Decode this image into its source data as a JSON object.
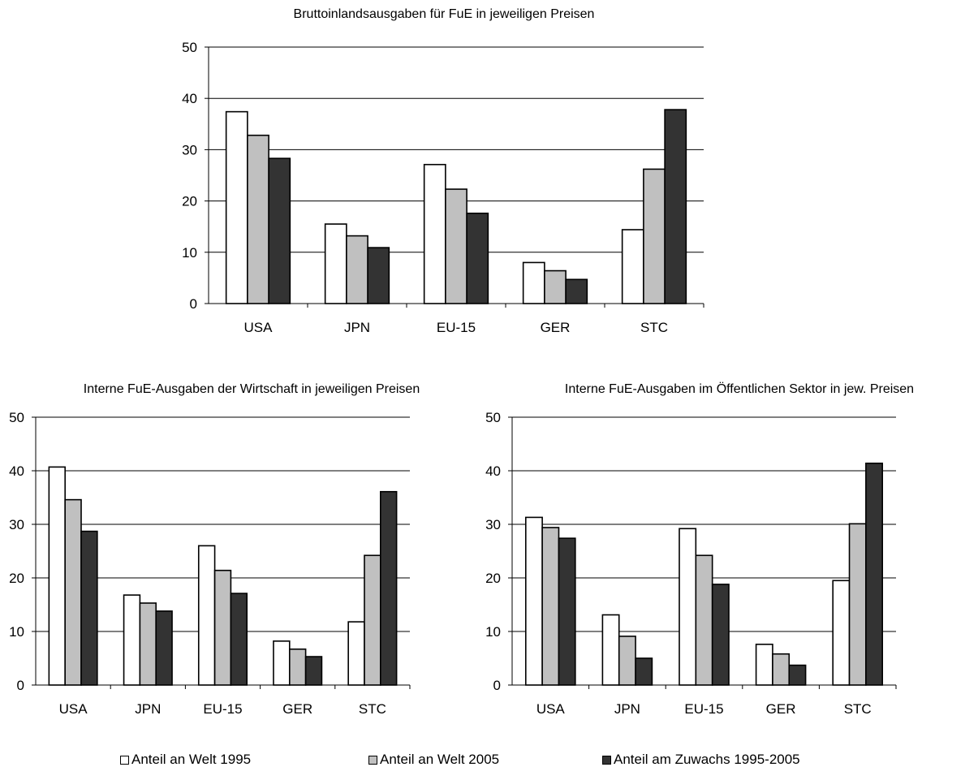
{
  "colors": {
    "series_1995": "#ffffff",
    "series_2005": "#c0c0c0",
    "series_growth": "#333333",
    "stroke": "#000000"
  },
  "legend": [
    {
      "label": "Anteil an Welt 1995"
    },
    {
      "label": "Anteil an Welt 2005"
    },
    {
      "label": "Anteil am Zuwachs 1995-2005"
    }
  ],
  "chart_data": [
    {
      "type": "bar",
      "title": "Bruttoinlandsausgaben für FuE in jeweiligen Preisen",
      "categories": [
        "USA",
        "JPN",
        "EU-15",
        "GER",
        "STC"
      ],
      "ylim": [
        0,
        50
      ],
      "yticks": [
        0,
        10,
        20,
        30,
        40,
        50
      ],
      "grid": true,
      "series": [
        {
          "name": "Anteil an Welt 1995",
          "values": [
            37.4,
            15.5,
            27.1,
            8.0,
            14.4
          ]
        },
        {
          "name": "Anteil an Welt 2005",
          "values": [
            32.8,
            13.2,
            22.3,
            6.4,
            26.2
          ]
        },
        {
          "name": "Anteil am Zuwachs 1995-2005",
          "values": [
            28.3,
            10.9,
            17.6,
            4.7,
            37.8
          ]
        }
      ]
    },
    {
      "type": "bar",
      "title": "Interne FuE-Ausgaben der Wirtschaft in jeweiligen Preisen",
      "categories": [
        "USA",
        "JPN",
        "EU-15",
        "GER",
        "STC"
      ],
      "ylim": [
        0,
        50
      ],
      "yticks": [
        0,
        10,
        20,
        30,
        40,
        50
      ],
      "grid": true,
      "series": [
        {
          "name": "Anteil an Welt 1995",
          "values": [
            40.7,
            16.8,
            26.0,
            8.2,
            11.8
          ]
        },
        {
          "name": "Anteil an Welt 2005",
          "values": [
            34.6,
            15.3,
            21.4,
            6.7,
            24.2
          ]
        },
        {
          "name": "Anteil am Zuwachs 1995-2005",
          "values": [
            28.7,
            13.8,
            17.1,
            5.3,
            36.1
          ]
        }
      ]
    },
    {
      "type": "bar",
      "title": "Interne FuE-Ausgaben im Öffentlichen Sektor in jew. Preisen",
      "categories": [
        "USA",
        "JPN",
        "EU-15",
        "GER",
        "STC"
      ],
      "ylim": [
        0,
        50
      ],
      "yticks": [
        0,
        10,
        20,
        30,
        40,
        50
      ],
      "grid": true,
      "series": [
        {
          "name": "Anteil an Welt 1995",
          "values": [
            31.3,
            13.1,
            29.2,
            7.6,
            19.5
          ]
        },
        {
          "name": "Anteil an Welt 2005",
          "values": [
            29.4,
            9.1,
            24.2,
            5.8,
            30.1
          ]
        },
        {
          "name": "Anteil am Zuwachs 1995-2005",
          "values": [
            27.4,
            5.0,
            18.8,
            3.7,
            41.4
          ]
        }
      ]
    }
  ]
}
